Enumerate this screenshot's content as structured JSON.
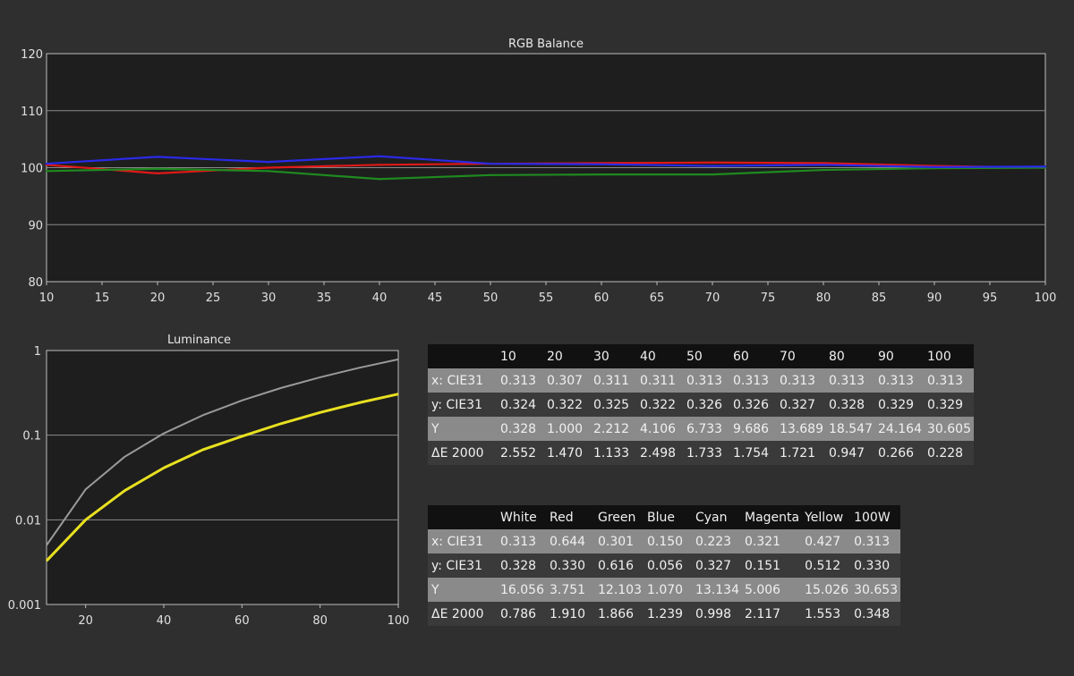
{
  "chart_data": [
    {
      "type": "line",
      "title": "RGB Balance",
      "xlabel": "",
      "ylabel": "",
      "xlim": [
        10,
        100
      ],
      "ylim": [
        80,
        120
      ],
      "x": [
        10,
        20,
        30,
        40,
        50,
        60,
        70,
        80,
        90,
        100
      ],
      "x_ticks": [
        10,
        15,
        20,
        25,
        30,
        35,
        40,
        45,
        50,
        55,
        60,
        65,
        70,
        75,
        80,
        85,
        90,
        95,
        100
      ],
      "y_ticks": [
        80,
        90,
        100,
        110,
        120
      ],
      "grid": true,
      "series": [
        {
          "color": "#e01818",
          "values": [
            100.5,
            99.0,
            100.0,
            100.5,
            100.7,
            100.8,
            100.9,
            100.8,
            100.3,
            100.0
          ]
        },
        {
          "color": "#1f8a1f",
          "values": [
            99.4,
            99.8,
            99.4,
            98.0,
            98.7,
            98.8,
            98.8,
            99.6,
            99.9,
            100.0
          ]
        },
        {
          "color": "#2a2ae8",
          "values": [
            100.7,
            101.9,
            101.0,
            102.0,
            100.7,
            100.6,
            100.3,
            100.5,
            100.1,
            100.2
          ]
        }
      ]
    },
    {
      "type": "line",
      "title": "Luminance",
      "xlabel": "",
      "ylabel": "",
      "xlim": [
        10,
        100
      ],
      "ylim": [
        0.001,
        1
      ],
      "yscale": "log",
      "x_ticks": [
        20,
        40,
        60,
        80,
        100
      ],
      "y_ticks": [
        0.001,
        0.01,
        0.1,
        1
      ],
      "y_tick_labels": [
        "0.001",
        "0.01",
        "0.1",
        "1"
      ],
      "grid": true,
      "x": [
        10,
        20,
        30,
        40,
        50,
        60,
        70,
        80,
        90,
        100
      ],
      "series": [
        {
          "color": "#e8e020",
          "values": [
            0.00328,
            0.01,
            0.02212,
            0.04106,
            0.06733,
            0.09686,
            0.13689,
            0.18547,
            0.24164,
            0.30605
          ]
        },
        {
          "color": "#9a9a9a",
          "values": [
            0.00501,
            0.0229,
            0.0556,
            0.105,
            0.172,
            0.257,
            0.361,
            0.483,
            0.625,
            0.786
          ]
        }
      ]
    }
  ],
  "grayscale_table": {
    "headers": [
      "",
      "10",
      "20",
      "30",
      "40",
      "50",
      "60",
      "70",
      "80",
      "90",
      "100"
    ],
    "rows": [
      [
        "x: CIE31",
        "0.313",
        "0.307",
        "0.311",
        "0.311",
        "0.313",
        "0.313",
        "0.313",
        "0.313",
        "0.313",
        "0.313"
      ],
      [
        "y: CIE31",
        "0.324",
        "0.322",
        "0.325",
        "0.322",
        "0.326",
        "0.326",
        "0.327",
        "0.328",
        "0.329",
        "0.329"
      ],
      [
        "Y",
        "0.328",
        "1.000",
        "2.212",
        "4.106",
        "6.733",
        "9.686",
        "13.689",
        "18.547",
        "24.164",
        "30.605"
      ],
      [
        "ΔE 2000",
        "2.552",
        "1.470",
        "1.133",
        "2.498",
        "1.733",
        "1.754",
        "1.721",
        "0.947",
        "0.266",
        "0.228"
      ]
    ]
  },
  "color_table": {
    "headers": [
      "",
      "White",
      "Red",
      "Green",
      "Blue",
      "Cyan",
      "Magenta",
      "Yellow",
      "100W"
    ],
    "rows": [
      [
        "x: CIE31",
        "0.313",
        "0.644",
        "0.301",
        "0.150",
        "0.223",
        "0.321",
        "0.427",
        "0.313"
      ],
      [
        "y: CIE31",
        "0.328",
        "0.330",
        "0.616",
        "0.056",
        "0.327",
        "0.151",
        "0.512",
        "0.330"
      ],
      [
        "Y",
        "16.056",
        "3.751",
        "12.103",
        "1.070",
        "13.134",
        "5.006",
        "15.026",
        "30.653"
      ],
      [
        "ΔE 2000",
        "0.786",
        "1.910",
        "1.866",
        "1.239",
        "0.998",
        "2.117",
        "1.553",
        "0.348"
      ]
    ]
  }
}
